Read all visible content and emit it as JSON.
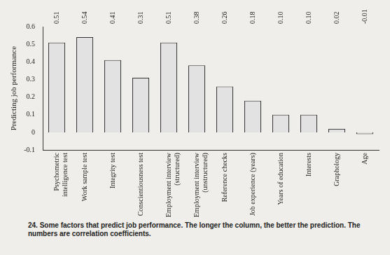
{
  "chart_data": {
    "type": "bar",
    "y_label": "Predicting job performance",
    "caption": "24. Some factors that predict job performance. The longer the column, the better the prediction. The numbers are correlation coefficients.",
    "categories": [
      "Psychometric intelligence test",
      "Work sample test",
      "Integrity test",
      "Conscientiousness test",
      "Employment interview (structured)",
      "Employment interview (unstructured)",
      "Reference checks",
      "Job experience (years)",
      "Years of education",
      "Interests",
      "Graphology",
      "Age"
    ],
    "values": [
      0.51,
      0.54,
      0.41,
      0.31,
      0.51,
      0.38,
      0.26,
      0.18,
      0.1,
      0.1,
      0.02,
      -0.01
    ],
    "value_labels": [
      "0.51",
      "0.54",
      "0.41",
      "0.31",
      "0.51",
      "0.38",
      "0.26",
      "0.18",
      "0.10",
      "0.10",
      "0.02",
      "-0.01"
    ],
    "color": "#e2e2e2",
    "ylim": [
      -0.1,
      0.6
    ],
    "yticks": [
      -0.1,
      0,
      0.1,
      0.2,
      0.3,
      0.4,
      0.5,
      0.6
    ],
    "grid": false,
    "data_labels": true
  }
}
